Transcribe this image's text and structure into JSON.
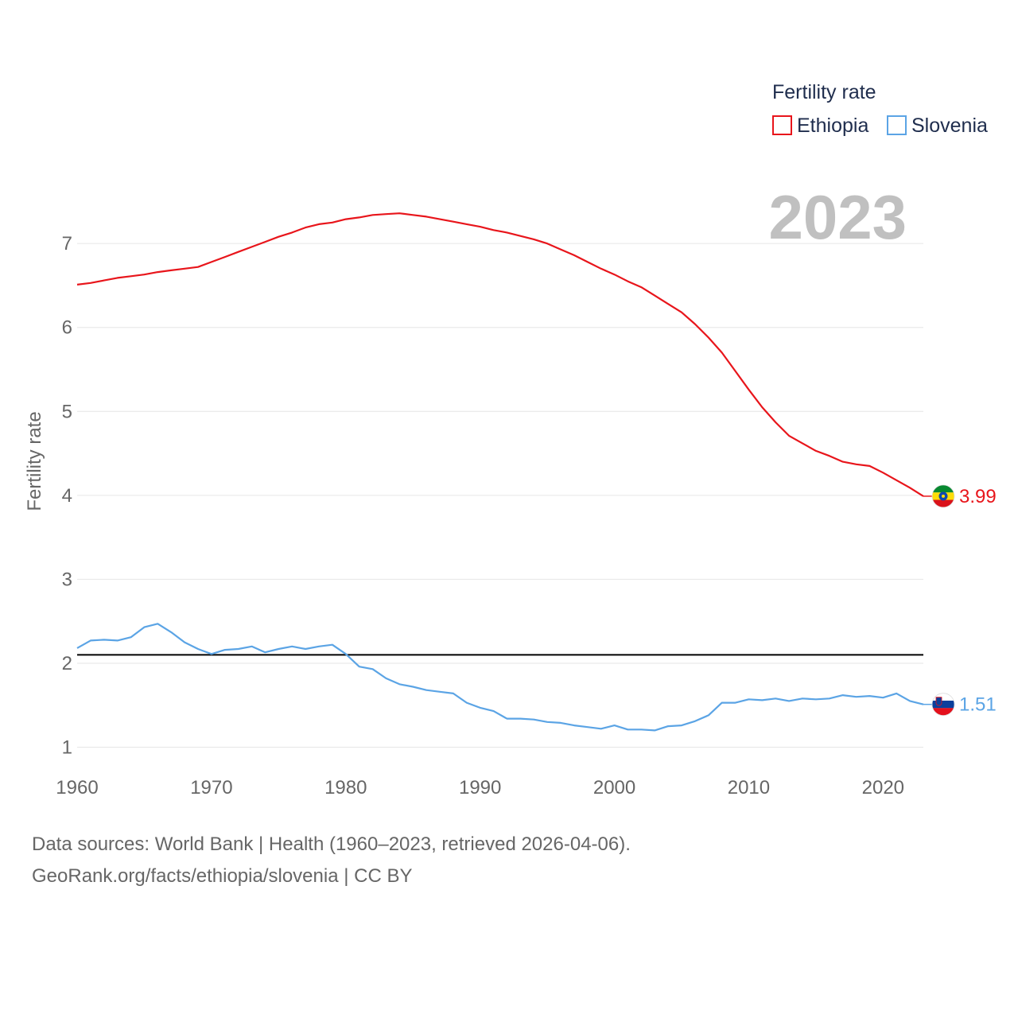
{
  "chart_data": {
    "type": "line",
    "title": "Fertility rate",
    "xlabel": "",
    "ylabel": "Fertility rate",
    "xlim": [
      1960,
      2023
    ],
    "ylim": [
      0.55,
      7.75
    ],
    "year_display": "2023",
    "x_ticks": [
      1960,
      1970,
      1980,
      1990,
      2000,
      2010,
      2020
    ],
    "y_ticks": [
      1,
      2,
      3,
      4,
      5,
      6,
      7
    ],
    "reference_line": {
      "value": 2.1,
      "color": "#000000"
    },
    "legend_title": "Fertility rate",
    "x": [
      1960,
      1961,
      1962,
      1963,
      1964,
      1965,
      1966,
      1967,
      1968,
      1969,
      1970,
      1971,
      1972,
      1973,
      1974,
      1975,
      1976,
      1977,
      1978,
      1979,
      1980,
      1981,
      1982,
      1983,
      1984,
      1985,
      1986,
      1987,
      1988,
      1989,
      1990,
      1991,
      1992,
      1993,
      1994,
      1995,
      1996,
      1997,
      1998,
      1999,
      2000,
      2001,
      2002,
      2003,
      2004,
      2005,
      2006,
      2007,
      2008,
      2009,
      2010,
      2011,
      2012,
      2013,
      2014,
      2015,
      2016,
      2017,
      2018,
      2019,
      2020,
      2021,
      2022,
      2023
    ],
    "series": [
      {
        "name": "Ethiopia",
        "color": "#e8151b",
        "end_label": "3.99",
        "flag": "ethiopia-flag",
        "values": [
          6.51,
          6.53,
          6.56,
          6.59,
          6.61,
          6.63,
          6.66,
          6.68,
          6.7,
          6.72,
          6.78,
          6.84,
          6.9,
          6.96,
          7.02,
          7.08,
          7.13,
          7.19,
          7.23,
          7.25,
          7.29,
          7.31,
          7.34,
          7.35,
          7.36,
          7.34,
          7.32,
          7.29,
          7.26,
          7.23,
          7.2,
          7.16,
          7.13,
          7.09,
          7.05,
          7.0,
          6.93,
          6.86,
          6.78,
          6.7,
          6.63,
          6.55,
          6.48,
          6.38,
          6.28,
          6.18,
          6.04,
          5.88,
          5.7,
          5.48,
          5.26,
          5.05,
          4.87,
          4.71,
          4.62,
          4.53,
          4.47,
          4.4,
          4.37,
          4.35,
          4.27,
          4.18,
          4.09,
          3.99
        ]
      },
      {
        "name": "Slovenia",
        "color": "#5ba4e5",
        "end_label": "1.51",
        "flag": "slovenia-flag",
        "values": [
          2.18,
          2.27,
          2.28,
          2.27,
          2.31,
          2.43,
          2.47,
          2.37,
          2.25,
          2.17,
          2.11,
          2.16,
          2.17,
          2.2,
          2.13,
          2.17,
          2.2,
          2.17,
          2.2,
          2.22,
          2.11,
          1.96,
          1.93,
          1.82,
          1.75,
          1.72,
          1.68,
          1.66,
          1.64,
          1.53,
          1.47,
          1.43,
          1.34,
          1.34,
          1.33,
          1.3,
          1.29,
          1.26,
          1.24,
          1.22,
          1.26,
          1.21,
          1.21,
          1.2,
          1.25,
          1.26,
          1.31,
          1.38,
          1.53,
          1.53,
          1.57,
          1.56,
          1.58,
          1.55,
          1.58,
          1.57,
          1.58,
          1.62,
          1.6,
          1.61,
          1.59,
          1.64,
          1.55,
          1.51
        ]
      }
    ]
  },
  "footer": {
    "line1": "Data sources: World Bank | Health (1960–2023, retrieved 2026-04-06).",
    "line2": "GeoRank.org/facts/ethiopia/slovenia | CC BY"
  }
}
